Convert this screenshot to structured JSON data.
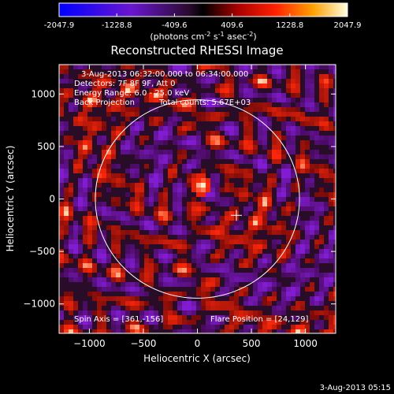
{
  "colorbar": {
    "ticks": [
      "-2047.9",
      "-1228.8",
      "-409.6",
      "409.6",
      "1228.8",
      "2047.9"
    ],
    "unit_main": "(photons cm",
    "unit_exp1": "-2",
    "unit_mid": " s",
    "unit_exp2": "-1",
    "unit_mid2": " asec",
    "unit_exp3": "-2",
    "unit_close": ")"
  },
  "chart_data": {
    "type": "heatmap",
    "title": "Reconstructed RHESSI Image",
    "xlabel": "Heliocentric X (arcsec)",
    "ylabel": "Heliocentric Y (arcsec)",
    "xlim": [
      -1280,
      1280
    ],
    "ylim": [
      -1280,
      1280
    ],
    "x_ticks": [
      -1000,
      -500,
      0,
      500,
      1000
    ],
    "y_ticks": [
      -1000,
      -500,
      0,
      500,
      1000
    ],
    "x_tick_labels": [
      "−1000",
      "−500",
      "0",
      "500",
      "1000"
    ],
    "y_tick_labels": [
      "−1000",
      "−500",
      "0",
      "500",
      "1000"
    ],
    "value_range": [
      -2047.9,
      2047.9
    ],
    "solar_limb_radius": 945,
    "bright_source": {
      "x": 20,
      "y": 150,
      "value": 2047.9
    },
    "flare_marker": {
      "x": 361,
      "y": -156
    },
    "annotations": [
      "3-Aug-2013 06:32:00.000 to 06:34:00.000",
      "Detectors: 7F 8F 9F, Att 0",
      "Energy Range: 6.0 - 25.0 keV",
      "Back Projection",
      "Total counts: 5.67E+03",
      "Spin Axis = [361,-156]",
      "Flare Position = [24,129]"
    ]
  },
  "footer": {
    "timestamp": "3-Aug-2013 05:15"
  }
}
